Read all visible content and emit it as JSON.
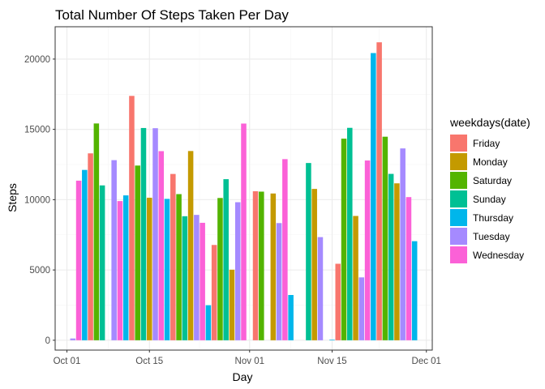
{
  "chart_data": {
    "type": "bar",
    "title": "Total Number Of Steps Taken Per Day",
    "xlabel": "Day",
    "ylabel": "Steps",
    "x_ticks": [
      {
        "date": "2012-10-01",
        "label": "Oct 01"
      },
      {
        "date": "2012-10-15",
        "label": "Oct 15"
      },
      {
        "date": "2012-11-01",
        "label": "Nov 01"
      },
      {
        "date": "2012-11-15",
        "label": "Nov 15"
      },
      {
        "date": "2012-12-01",
        "label": "Dec 01"
      }
    ],
    "xlim": [
      "2012-09-29",
      "2012-12-02"
    ],
    "y_ticks": [
      0,
      5000,
      10000,
      15000,
      20000
    ],
    "y_tick_labels": [
      "0",
      "5000",
      "10000",
      "15000",
      "20000"
    ],
    "ylim": [
      -700,
      22300
    ],
    "grid": true,
    "legend": {
      "title": "weekdays(date)",
      "placement": "right",
      "entries": [
        {
          "name": "Friday",
          "color": "#F8766D"
        },
        {
          "name": "Monday",
          "color": "#C49A00"
        },
        {
          "name": "Saturday",
          "color": "#53B400"
        },
        {
          "name": "Sunday",
          "color": "#00C094"
        },
        {
          "name": "Thursday",
          "color": "#00B6EB"
        },
        {
          "name": "Tuesday",
          "color": "#A58AFF"
        },
        {
          "name": "Wednesday",
          "color": "#FB61D7"
        }
      ]
    },
    "points": [
      {
        "date": "2012-10-02",
        "day": "Tuesday",
        "steps": 126
      },
      {
        "date": "2012-10-03",
        "day": "Wednesday",
        "steps": 11352
      },
      {
        "date": "2012-10-04",
        "day": "Thursday",
        "steps": 12116
      },
      {
        "date": "2012-10-05",
        "day": "Friday",
        "steps": 13294
      },
      {
        "date": "2012-10-06",
        "day": "Saturday",
        "steps": 15420
      },
      {
        "date": "2012-10-07",
        "day": "Sunday",
        "steps": 11015
      },
      {
        "date": "2012-10-09",
        "day": "Tuesday",
        "steps": 12811
      },
      {
        "date": "2012-10-10",
        "day": "Wednesday",
        "steps": 9900
      },
      {
        "date": "2012-10-11",
        "day": "Thursday",
        "steps": 10304
      },
      {
        "date": "2012-10-12",
        "day": "Friday",
        "steps": 17382
      },
      {
        "date": "2012-10-13",
        "day": "Saturday",
        "steps": 12426
      },
      {
        "date": "2012-10-14",
        "day": "Sunday",
        "steps": 15098
      },
      {
        "date": "2012-10-15",
        "day": "Monday",
        "steps": 10139
      },
      {
        "date": "2012-10-16",
        "day": "Tuesday",
        "steps": 15084
      },
      {
        "date": "2012-10-17",
        "day": "Wednesday",
        "steps": 13452
      },
      {
        "date": "2012-10-18",
        "day": "Thursday",
        "steps": 10056
      },
      {
        "date": "2012-10-19",
        "day": "Friday",
        "steps": 11829
      },
      {
        "date": "2012-10-20",
        "day": "Saturday",
        "steps": 10395
      },
      {
        "date": "2012-10-21",
        "day": "Sunday",
        "steps": 8821
      },
      {
        "date": "2012-10-22",
        "day": "Monday",
        "steps": 13460
      },
      {
        "date": "2012-10-23",
        "day": "Tuesday",
        "steps": 8918
      },
      {
        "date": "2012-10-24",
        "day": "Wednesday",
        "steps": 8355
      },
      {
        "date": "2012-10-25",
        "day": "Thursday",
        "steps": 2492
      },
      {
        "date": "2012-10-26",
        "day": "Friday",
        "steps": 6778
      },
      {
        "date": "2012-10-27",
        "day": "Saturday",
        "steps": 10119
      },
      {
        "date": "2012-10-28",
        "day": "Sunday",
        "steps": 11458
      },
      {
        "date": "2012-10-29",
        "day": "Monday",
        "steps": 5018
      },
      {
        "date": "2012-10-30",
        "day": "Tuesday",
        "steps": 9819
      },
      {
        "date": "2012-10-31",
        "day": "Wednesday",
        "steps": 15414
      },
      {
        "date": "2012-11-02",
        "day": "Friday",
        "steps": 10600
      },
      {
        "date": "2012-11-03",
        "day": "Saturday",
        "steps": 10571
      },
      {
        "date": "2012-11-05",
        "day": "Monday",
        "steps": 10439
      },
      {
        "date": "2012-11-06",
        "day": "Tuesday",
        "steps": 8334
      },
      {
        "date": "2012-11-07",
        "day": "Wednesday",
        "steps": 12883
      },
      {
        "date": "2012-11-08",
        "day": "Thursday",
        "steps": 3219
      },
      {
        "date": "2012-11-11",
        "day": "Sunday",
        "steps": 12608
      },
      {
        "date": "2012-11-12",
        "day": "Monday",
        "steps": 10765
      },
      {
        "date": "2012-11-13",
        "day": "Tuesday",
        "steps": 7336
      },
      {
        "date": "2012-11-15",
        "day": "Thursday",
        "steps": 41
      },
      {
        "date": "2012-11-16",
        "day": "Friday",
        "steps": 5441
      },
      {
        "date": "2012-11-17",
        "day": "Saturday",
        "steps": 14339
      },
      {
        "date": "2012-11-18",
        "day": "Sunday",
        "steps": 15110
      },
      {
        "date": "2012-11-19",
        "day": "Monday",
        "steps": 8841
      },
      {
        "date": "2012-11-20",
        "day": "Tuesday",
        "steps": 4472
      },
      {
        "date": "2012-11-21",
        "day": "Wednesday",
        "steps": 12787
      },
      {
        "date": "2012-11-22",
        "day": "Thursday",
        "steps": 20427
      },
      {
        "date": "2012-11-23",
        "day": "Friday",
        "steps": 21194
      },
      {
        "date": "2012-11-24",
        "day": "Saturday",
        "steps": 14478
      },
      {
        "date": "2012-11-25",
        "day": "Sunday",
        "steps": 11834
      },
      {
        "date": "2012-11-26",
        "day": "Monday",
        "steps": 11162
      },
      {
        "date": "2012-11-27",
        "day": "Tuesday",
        "steps": 13646
      },
      {
        "date": "2012-11-28",
        "day": "Wednesday",
        "steps": 10183
      },
      {
        "date": "2012-11-29",
        "day": "Thursday",
        "steps": 7047
      }
    ]
  },
  "style": {
    "panel_border": "#333333",
    "grid_major": "#ebebeb",
    "grid_minor": "#f5f5f5",
    "tick_color": "#333333"
  }
}
